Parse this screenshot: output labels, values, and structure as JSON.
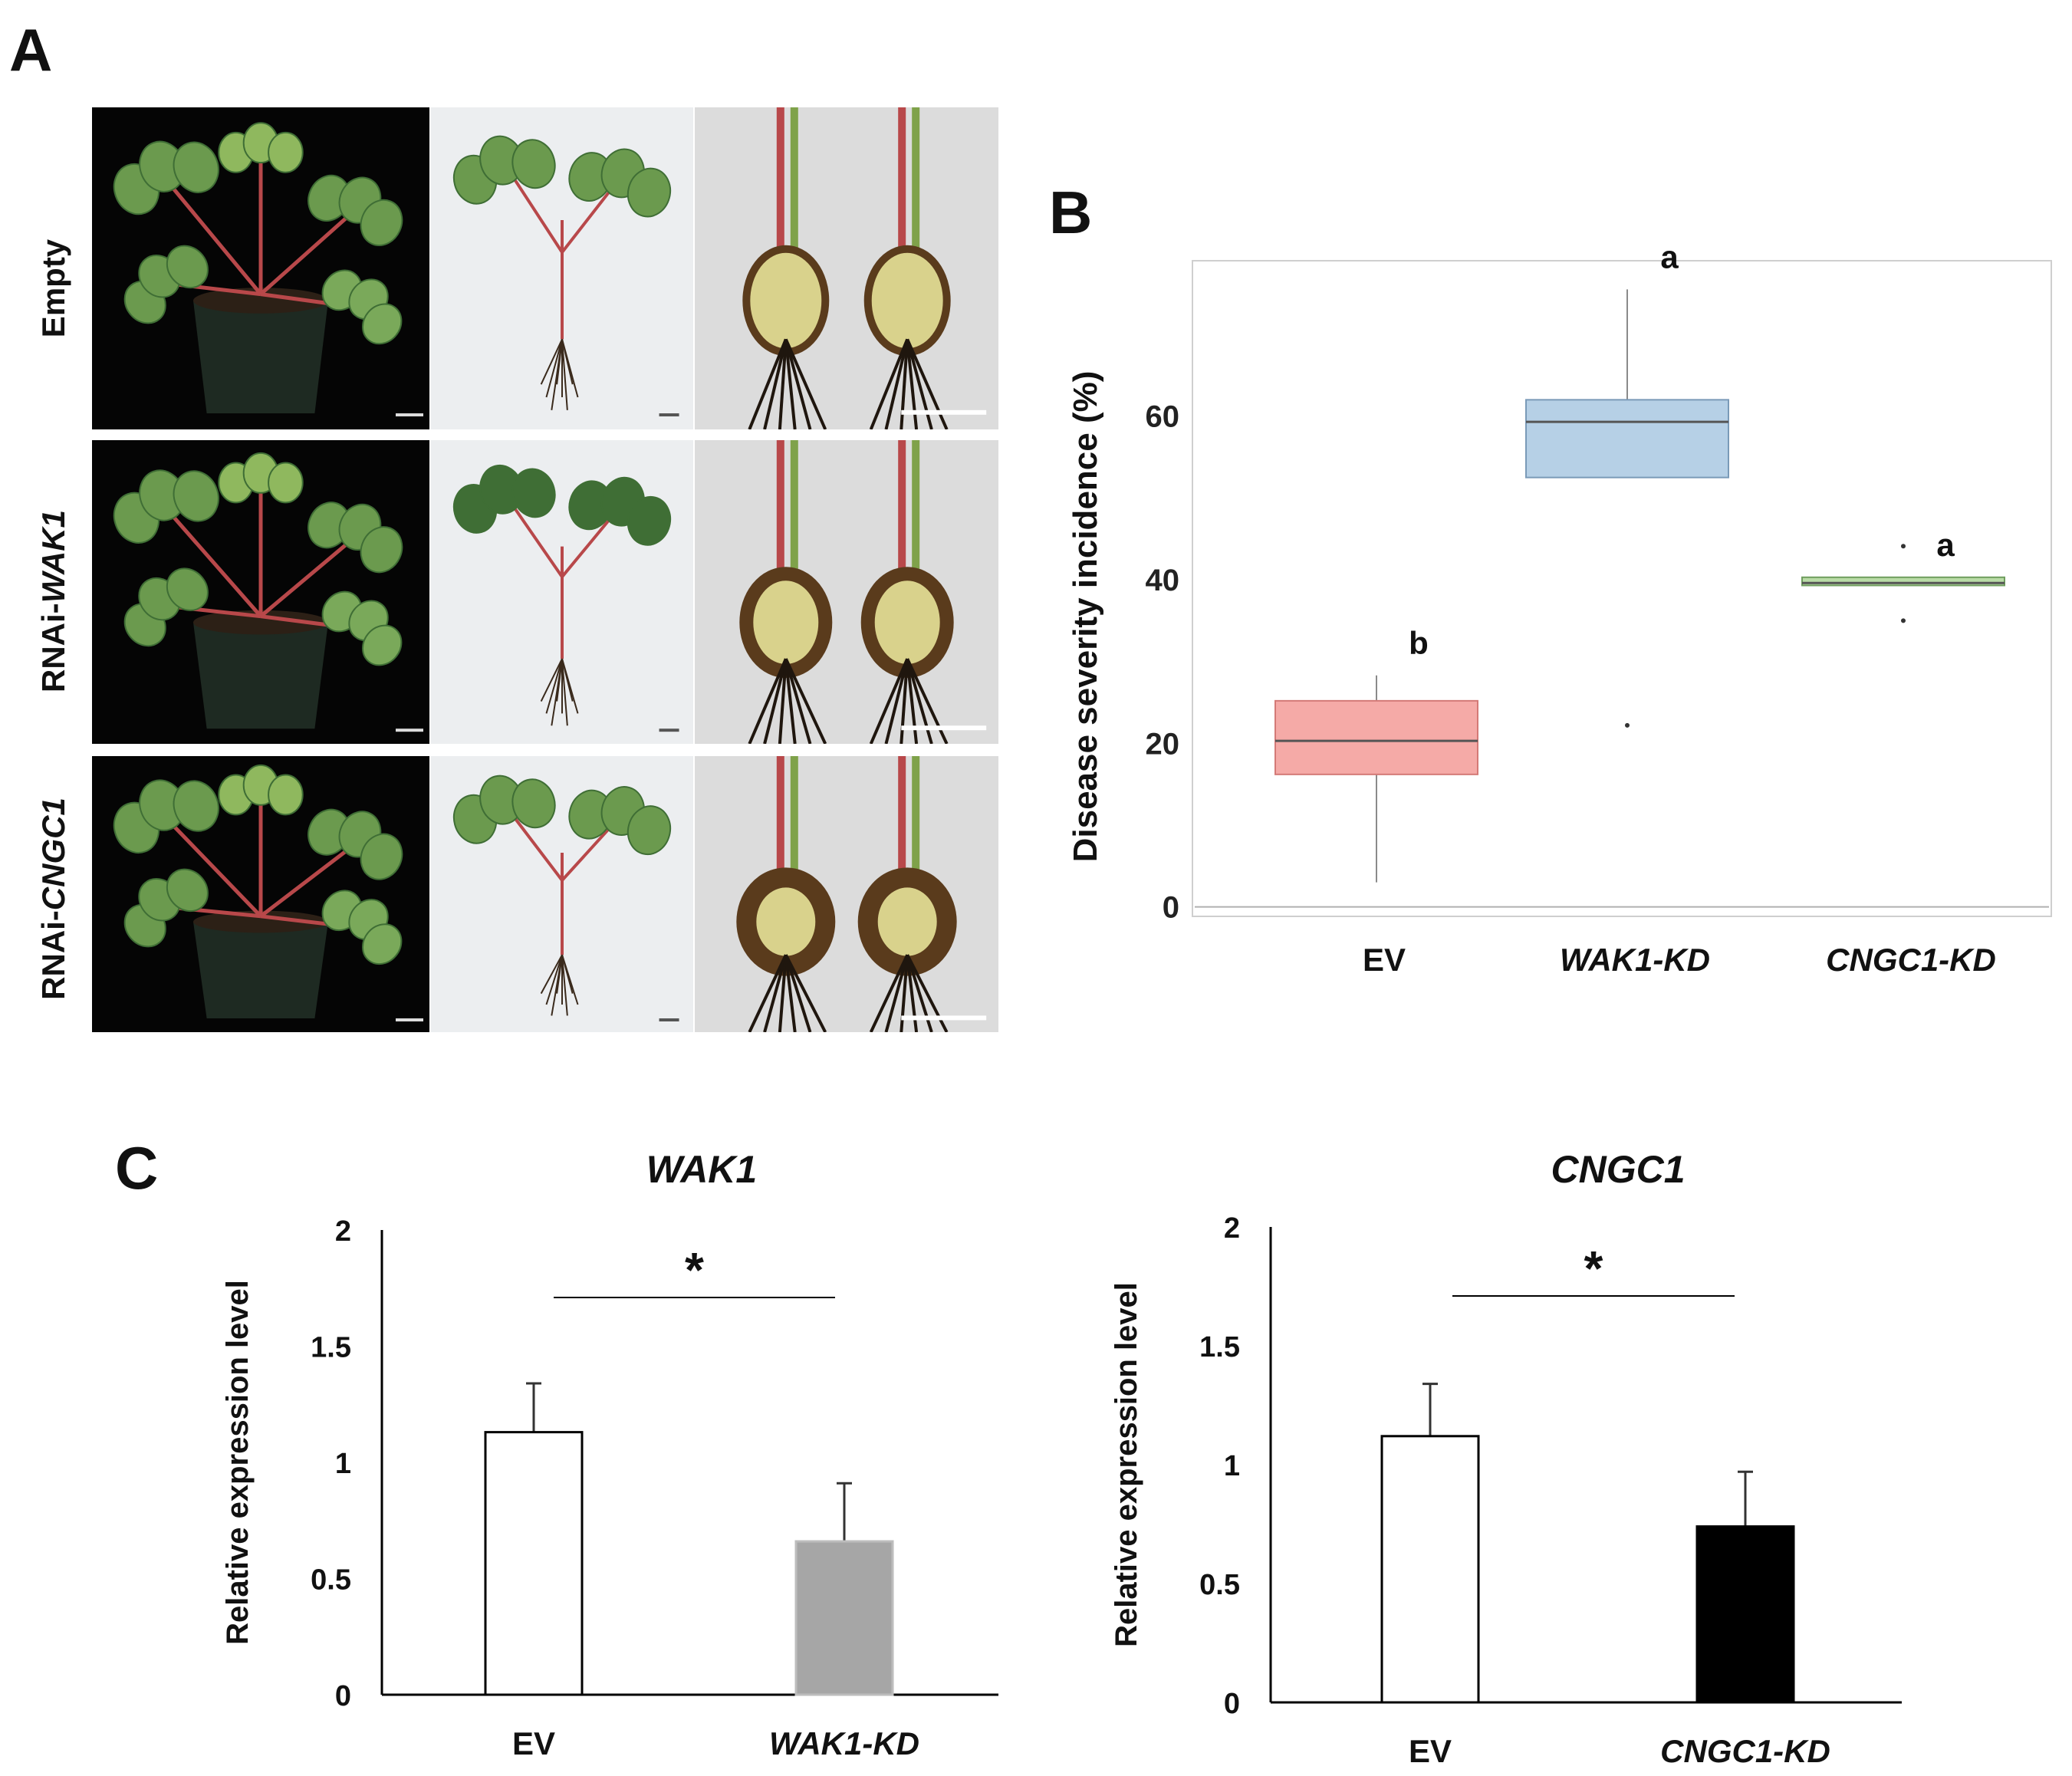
{
  "panels": {
    "A": "A",
    "B": "B",
    "C": "C"
  },
  "panel_a": {
    "rows": [
      {
        "prefix": "Empty",
        "gene": ""
      },
      {
        "prefix": "RNAi-",
        "gene": "WAK1"
      },
      {
        "prefix": "RNAi-",
        "gene": "CNGC1"
      }
    ],
    "photo_colors": {
      "black_bg": "#050505",
      "white_bg": "#eceef0",
      "leaf": "#6b9a4e",
      "leaf_dark": "#3f6e35",
      "stem": "#b8484a",
      "pot": "#1e2a22",
      "root": "#3a2a1c",
      "crown": "#d9d28c",
      "rot": "#5a3b1c"
    }
  },
  "chart_data": [
    {
      "id": "B",
      "type": "box",
      "categories": [
        "EV",
        "WAK1-KD",
        "CNGC1-KD"
      ],
      "ylabel": "Disease severity incidence (%)",
      "ylim": [
        -0.5,
        79
      ],
      "yticks": [
        0,
        20,
        40,
        60
      ],
      "boxes": [
        {
          "min": 3,
          "q1": 16.2,
          "median": 20.3,
          "q3": 25.2,
          "max": 28.3,
          "outliers": [],
          "fill": "#f5aaa7",
          "stroke": "#d47a77",
          "letter": "b"
        },
        {
          "min": 52.5,
          "q1": 52.5,
          "median": 59.3,
          "q3": 62,
          "max": 75.5,
          "outliers": [
            22.2
          ],
          "fill": "#b6d0e6",
          "stroke": "#7a9ab8",
          "letter": "a"
        },
        {
          "min": 39.3,
          "q1": 39.3,
          "median": 39.6,
          "q3": 40.3,
          "max": 40.3,
          "outliers": [
            44.1,
            35
          ],
          "fill": "#b9dca6",
          "stroke": "#6f9d5e",
          "letter": "a"
        }
      ]
    },
    {
      "id": "C1",
      "type": "bar",
      "title": "WAK1",
      "ylabel": "Relative expression level",
      "categories": [
        "EV",
        "WAK1-KD"
      ],
      "values": [
        1.13,
        0.66
      ],
      "errors": [
        0.21,
        0.25
      ],
      "colors": [
        "#ffffff",
        "#a6a6a6"
      ],
      "ylim": [
        0,
        2
      ],
      "yticks": [
        "0",
        "0.5",
        "1",
        "1.5",
        "2"
      ],
      "significance": "*"
    },
    {
      "id": "C2",
      "type": "bar",
      "title": "CNGC1",
      "ylabel": "Relative expression level",
      "categories": [
        "EV",
        "CNGC1-KD"
      ],
      "values": [
        1.12,
        0.74
      ],
      "errors": [
        0.22,
        0.23
      ],
      "colors": [
        "#ffffff",
        "#000000"
      ],
      "ylim": [
        0,
        2
      ],
      "yticks": [
        "0",
        "0.5",
        "1",
        "1.5",
        "2"
      ],
      "significance": "*"
    }
  ]
}
